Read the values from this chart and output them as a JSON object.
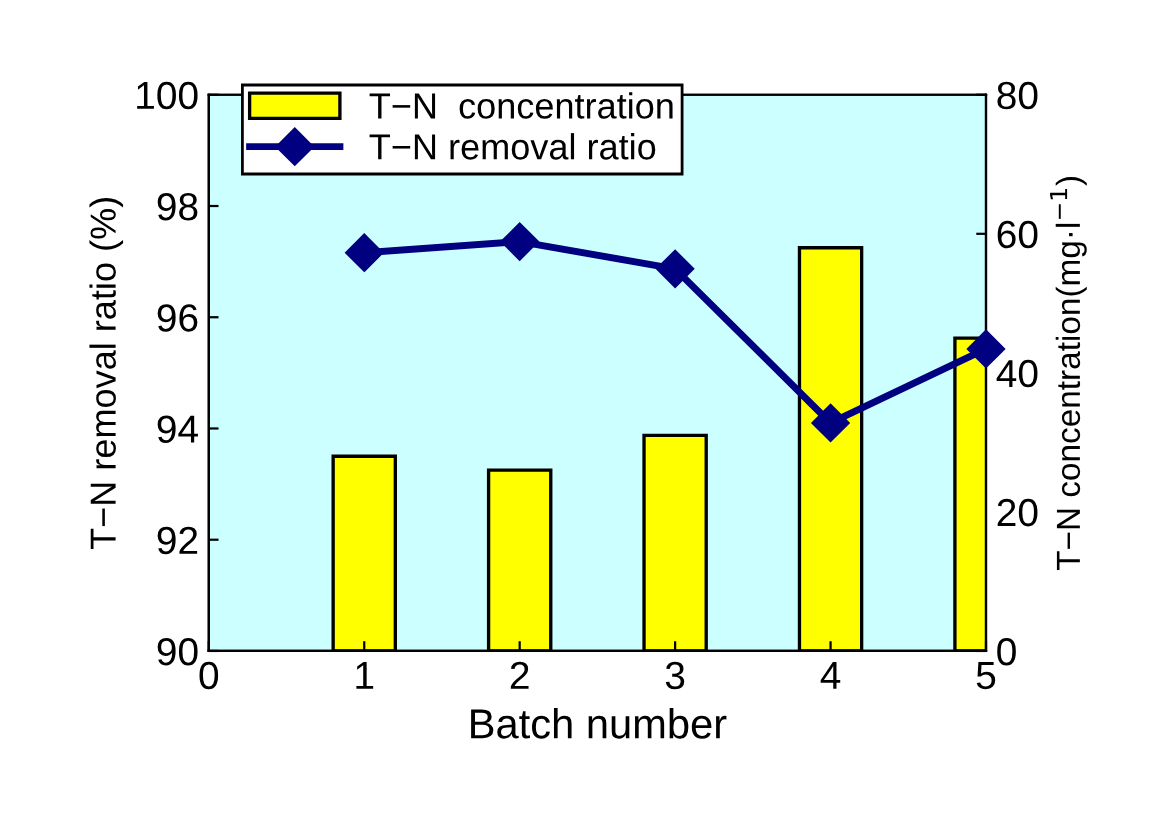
{
  "chart_data": {
    "type": "bar",
    "xlabel": "Batch number",
    "ylabel": "T−N removal ratio (%)",
    "y2label": "T−N concentration(mg·l$^{−1}$)",
    "x": [
      1,
      2,
      3,
      4,
      5
    ],
    "xlim": [
      0,
      5
    ],
    "xticks": [
      0,
      1,
      2,
      3,
      4,
      5
    ],
    "ylim": [
      90,
      100
    ],
    "yticks": [
      90,
      92,
      94,
      96,
      98,
      100
    ],
    "y2lim": [
      0,
      80
    ],
    "y2ticks": [
      0,
      20,
      40,
      60,
      80
    ],
    "series": [
      {
        "name": "T−N  concentration",
        "axis": "y2",
        "color": "#ffff00",
        "values": [
          28,
          26,
          31,
          58,
          45
        ]
      },
      {
        "name": "T−N removal ratio",
        "type": "line",
        "axis": "y",
        "color": "#000080",
        "marker": "diamond",
        "values": [
          97.16,
          97.36,
          96.87,
          94.1,
          95.43
        ]
      }
    ],
    "legend": "top left",
    "grid": false
  }
}
